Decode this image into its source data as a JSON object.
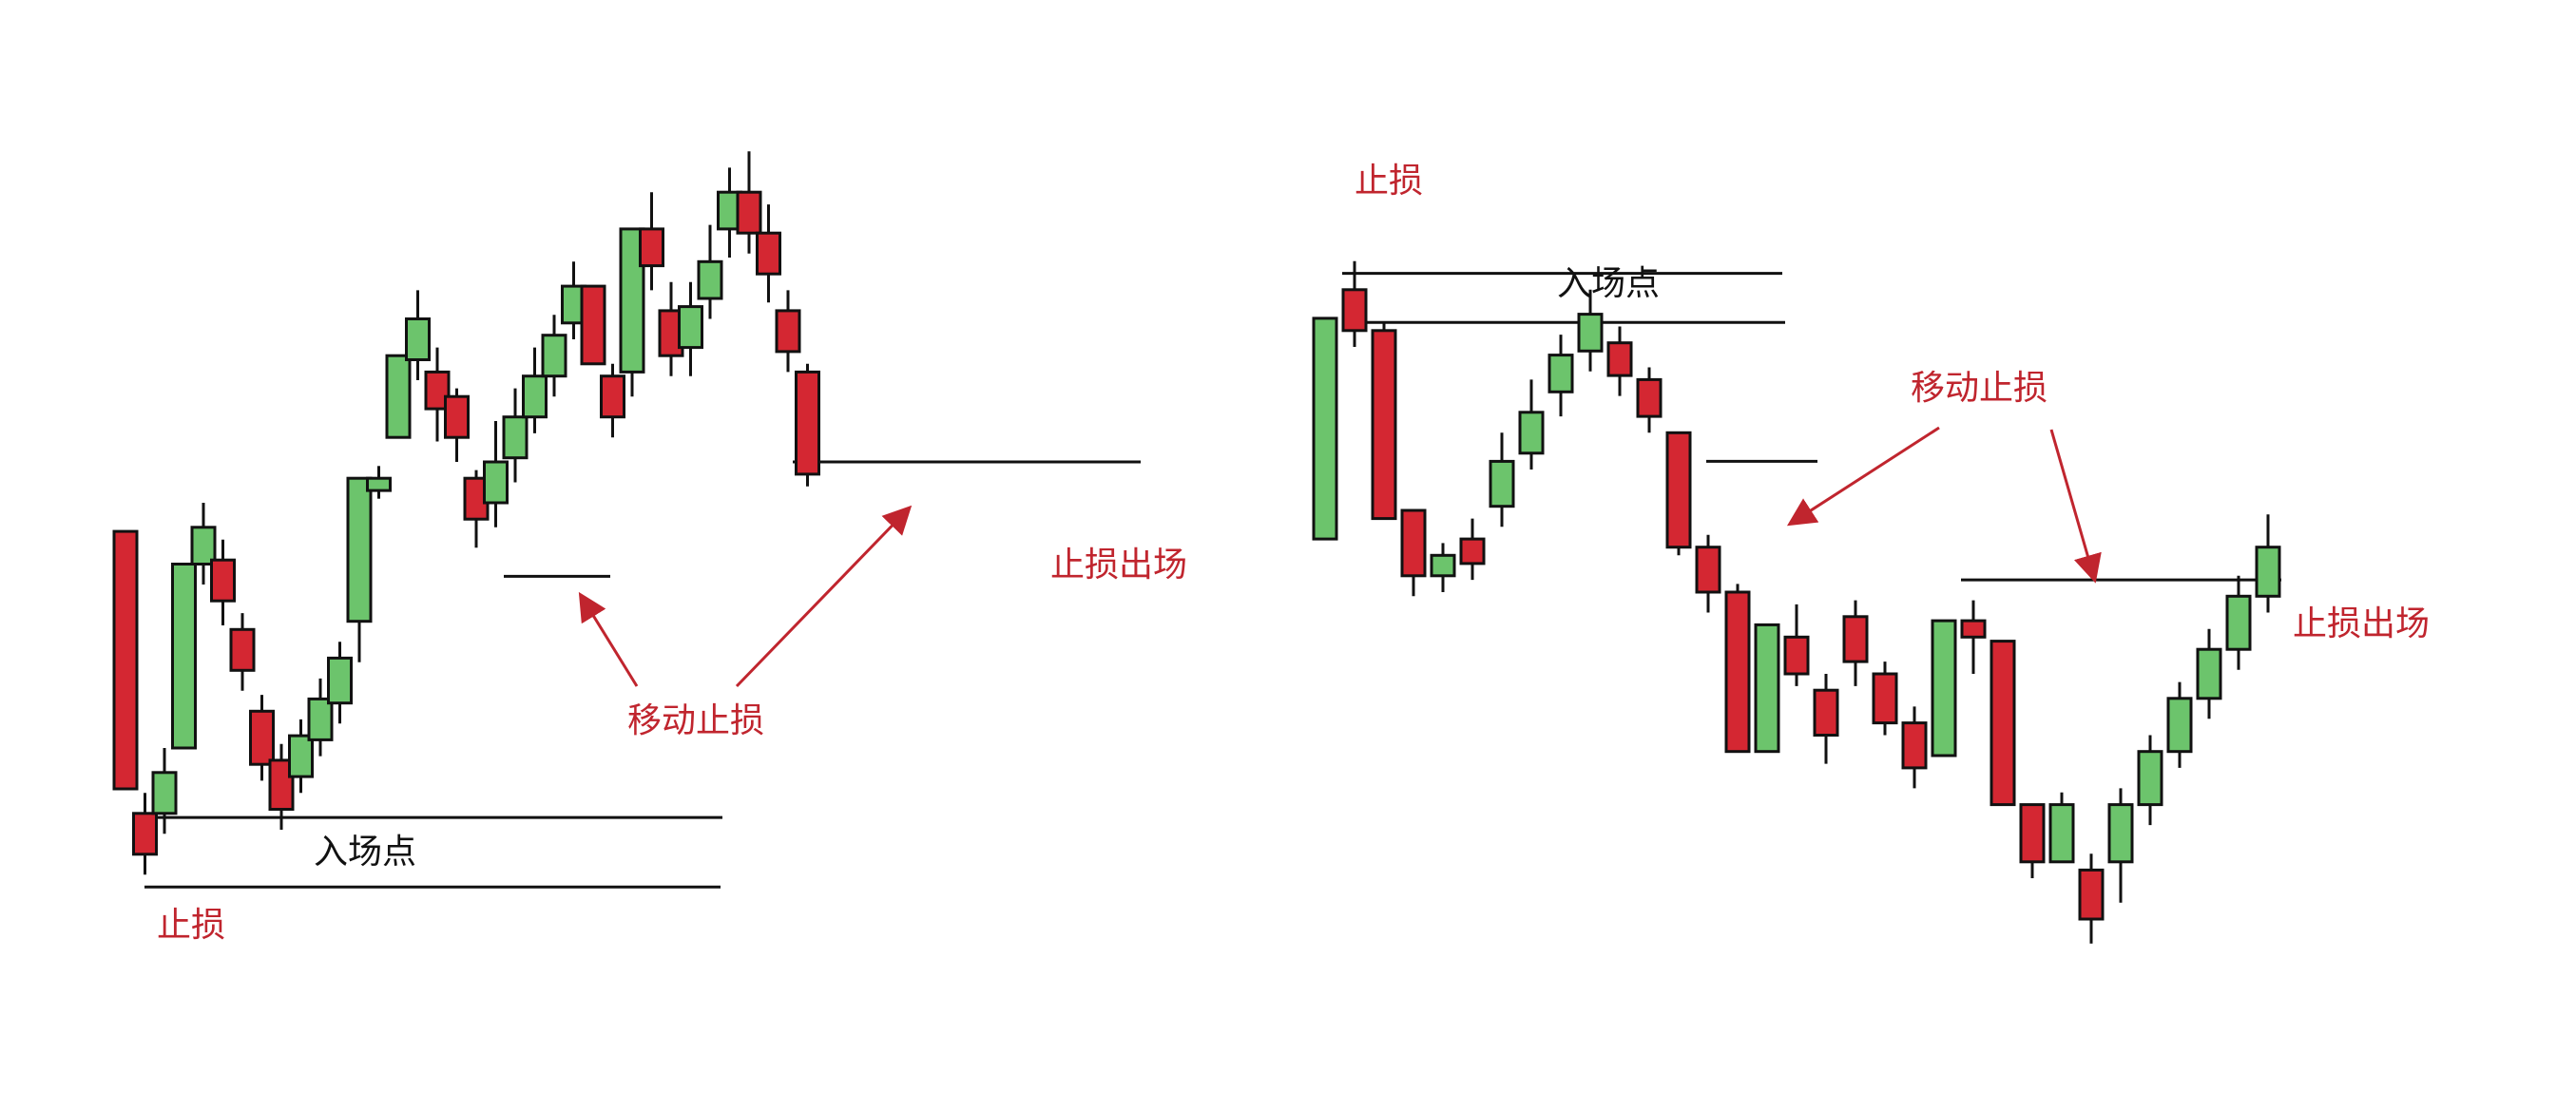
{
  "colors": {
    "bull": "#6cc46c",
    "bear": "#d42732",
    "outline": "#111111",
    "label_red": "#c0252e",
    "label_black": "#111111",
    "arrow": "#c0252e"
  },
  "left_panel": {
    "labels": {
      "stop_loss": "止损",
      "entry_point": "入场点",
      "trailing_stop": "移动止损",
      "stop_exit": "止损出场"
    },
    "candles": [
      {
        "o": 63,
        "c": 0,
        "h": 63,
        "l": 0
      },
      {
        "o": -6,
        "c": -16,
        "h": -1,
        "l": -21
      },
      {
        "o": -6,
        "c": 4,
        "h": 10,
        "l": -11
      },
      {
        "o": 10,
        "c": 55,
        "h": 55,
        "l": 10
      },
      {
        "o": 55,
        "c": 64,
        "h": 70,
        "l": 50
      },
      {
        "o": 56,
        "c": 46,
        "h": 61,
        "l": 40
      },
      {
        "o": 39,
        "c": 29,
        "h": 43,
        "l": 24
      },
      {
        "o": 19,
        "c": 6,
        "h": 23,
        "l": 2
      },
      {
        "o": 7,
        "c": -5,
        "h": 11,
        "l": -10
      },
      {
        "o": 3,
        "c": 13,
        "h": 17,
        "l": -1
      },
      {
        "o": 12,
        "c": 22,
        "h": 27,
        "l": 8
      },
      {
        "o": 21,
        "c": 32,
        "h": 36,
        "l": 16
      },
      {
        "o": 41,
        "c": 76,
        "h": 76,
        "l": 31
      },
      {
        "o": 73,
        "c": 76,
        "h": 79,
        "l": 71
      },
      {
        "o": 86,
        "c": 106,
        "h": 106,
        "l": 86
      },
      {
        "o": 105,
        "c": 115,
        "h": 122,
        "l": 100
      },
      {
        "o": 102,
        "c": 93,
        "h": 108,
        "l": 85
      },
      {
        "o": 96,
        "c": 86,
        "h": 98,
        "l": 80
      },
      {
        "o": 76,
        "c": 66,
        "h": 78,
        "l": 59
      },
      {
        "o": 70,
        "c": 80,
        "h": 90,
        "l": 64
      },
      {
        "o": 81,
        "c": 91,
        "h": 98,
        "l": 75
      },
      {
        "o": 91,
        "c": 101,
        "h": 108,
        "l": 87
      },
      {
        "o": 101,
        "c": 111,
        "h": 116,
        "l": 96
      },
      {
        "o": 114,
        "c": 123,
        "h": 129,
        "l": 110
      },
      {
        "o": 123,
        "c": 104,
        "h": 123,
        "l": 104
      },
      {
        "o": 101,
        "c": 91,
        "h": 104,
        "l": 86
      },
      {
        "o": 102,
        "c": 137,
        "h": 137,
        "l": 96
      },
      {
        "o": 137,
        "c": 128,
        "h": 146,
        "l": 122
      },
      {
        "o": 117,
        "c": 106,
        "h": 124,
        "l": 101
      },
      {
        "o": 108,
        "c": 118,
        "h": 124,
        "l": 101
      },
      {
        "o": 120,
        "c": 129,
        "h": 138,
        "l": 115
      },
      {
        "o": 137,
        "c": 146,
        "h": 152,
        "l": 130
      },
      {
        "o": 146,
        "c": 136,
        "h": 156,
        "l": 131
      },
      {
        "o": 136,
        "c": 126,
        "h": 143,
        "l": 119
      },
      {
        "o": 117,
        "c": 107,
        "h": 122,
        "l": 102
      },
      {
        "o": 102,
        "c": 77,
        "h": 104,
        "l": 74
      }
    ],
    "levels": {
      "stop_loss": -24,
      "entry": -7,
      "trail_1": 52,
      "trail_2": 80
    }
  },
  "right_panel": {
    "labels": {
      "stop_loss": "止损",
      "entry_point": "入场点",
      "trailing_stop": "移动止损",
      "stop_exit": "止损出场"
    },
    "candles": [
      {
        "o": 53,
        "c": 107,
        "h": 107,
        "l": 53
      },
      {
        "o": 114,
        "c": 104,
        "h": 121,
        "l": 100
      },
      {
        "o": 104,
        "c": 58,
        "h": 106,
        "l": 58
      },
      {
        "o": 60,
        "c": 44,
        "h": 60,
        "l": 39
      },
      {
        "o": 44,
        "c": 49,
        "h": 52,
        "l": 40
      },
      {
        "o": 53,
        "c": 47,
        "h": 58,
        "l": 43
      },
      {
        "o": 61,
        "c": 72,
        "h": 79,
        "l": 56
      },
      {
        "o": 74,
        "c": 84,
        "h": 92,
        "l": 70
      },
      {
        "o": 89,
        "c": 98,
        "h": 103,
        "l": 83
      },
      {
        "o": 99,
        "c": 108,
        "h": 114,
        "l": 94
      },
      {
        "o": 101,
        "c": 93,
        "h": 105,
        "l": 88
      },
      {
        "o": 92,
        "c": 83,
        "h": 95,
        "l": 79
      },
      {
        "o": 79,
        "c": 51,
        "h": 79,
        "l": 49
      },
      {
        "o": 51,
        "c": 40,
        "h": 54,
        "l": 35
      },
      {
        "o": 40,
        "c": 1,
        "h": 42,
        "l": 1
      },
      {
        "o": 1,
        "c": 32,
        "h": 32,
        "l": 1
      },
      {
        "o": 29,
        "c": 20,
        "h": 37,
        "l": 17
      },
      {
        "o": 16,
        "c": 5,
        "h": 20,
        "l": -2
      },
      {
        "o": 34,
        "c": 23,
        "h": 38,
        "l": 17
      },
      {
        "o": 20,
        "c": 8,
        "h": 23,
        "l": 5
      },
      {
        "o": 8,
        "c": -3,
        "h": 12,
        "l": -8
      },
      {
        "o": 0,
        "c": 33,
        "h": 33,
        "l": 0
      },
      {
        "o": 33,
        "c": 29,
        "h": 38,
        "l": 20
      },
      {
        "o": 28,
        "c": -12,
        "h": 28,
        "l": -12
      },
      {
        "o": -12,
        "c": -26,
        "h": -12,
        "l": -30
      },
      {
        "o": -26,
        "c": -12,
        "h": -9,
        "l": -26
      },
      {
        "o": -28,
        "c": -40,
        "h": -24,
        "l": -46
      },
      {
        "o": -26,
        "c": -12,
        "h": -8,
        "l": -36
      },
      {
        "o": -12,
        "c": 1,
        "h": 5,
        "l": -17
      },
      {
        "o": 1,
        "c": 14,
        "h": 18,
        "l": -3
      },
      {
        "o": 14,
        "c": 26,
        "h": 31,
        "l": 9
      },
      {
        "o": 26,
        "c": 39,
        "h": 44,
        "l": 21
      },
      {
        "o": 39,
        "c": 51,
        "h": 59,
        "l": 35
      }
    ],
    "levels": {
      "stop_loss": 118,
      "entry": 106,
      "trail_1": 72,
      "trail_2": 43
    }
  }
}
